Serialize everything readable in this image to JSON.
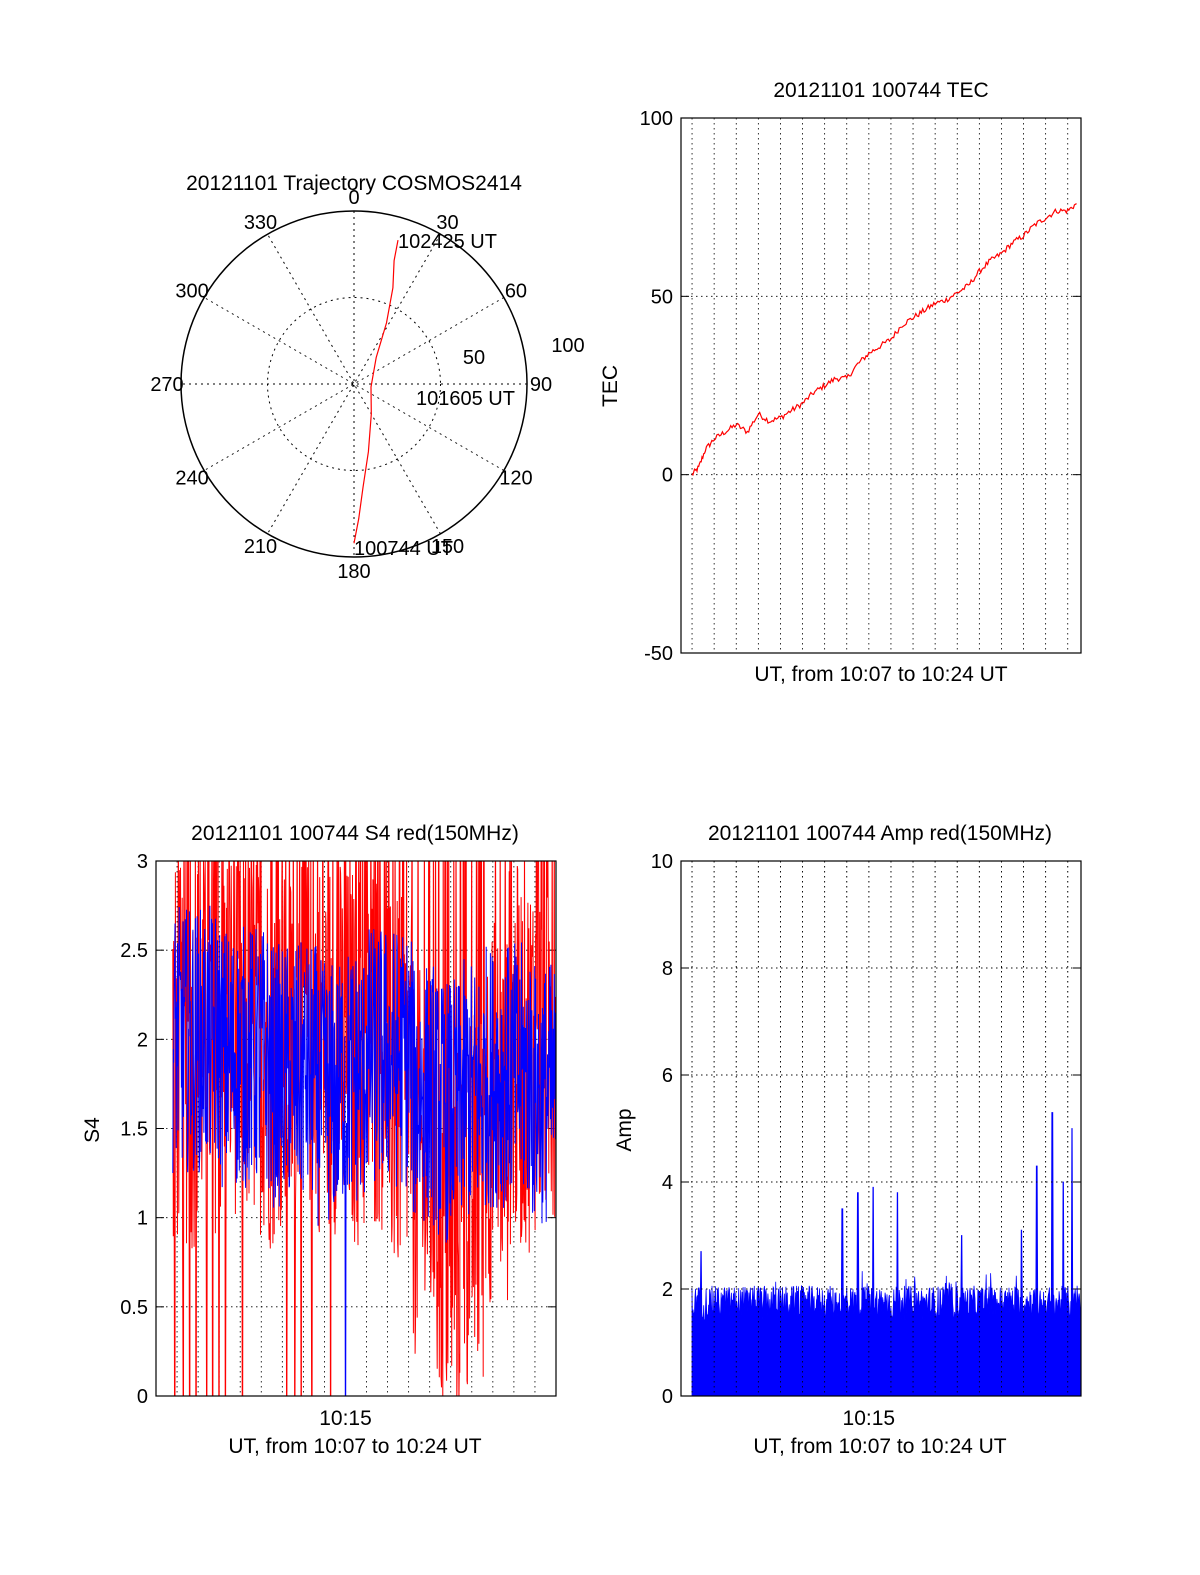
{
  "chart_data": [
    {
      "id": "polar",
      "type": "polar",
      "title": "20121101 Trajectory COSMOS2414",
      "azimuth_labels": [
        "0",
        "30",
        "60",
        "90",
        "120",
        "150",
        "180",
        "210",
        "240",
        "270",
        "300",
        "330"
      ],
      "radial_labels": [
        "50",
        "100"
      ],
      "radial_max": 100,
      "trajectory": {
        "color": "#ff0000",
        "points": [
          {
            "az": 180,
            "r": 92
          },
          {
            "az": 178,
            "r": 78
          },
          {
            "az": 175,
            "r": 60
          },
          {
            "az": 168,
            "r": 40
          },
          {
            "az": 150,
            "r": 20
          },
          {
            "az": 100,
            "r": 10
          },
          {
            "az": 40,
            "r": 20
          },
          {
            "az": 28,
            "r": 40
          },
          {
            "az": 22,
            "r": 60
          },
          {
            "az": 18,
            "r": 75
          },
          {
            "az": 17,
            "r": 87
          }
        ],
        "labels": [
          {
            "text": "102425 UT",
            "az": 17,
            "r": 87
          },
          {
            "text": "101605 UT",
            "az": 100,
            "r": 10
          },
          {
            "text": "100744 UT",
            "az": 180,
            "r": 92
          }
        ]
      },
      "grid": "dotted"
    },
    {
      "id": "tec",
      "type": "line",
      "title": "20121101 100744 TEC",
      "xlabel": "UT, from 10:07 to 10:24 UT",
      "ylabel": "TEC",
      "ylim": [
        -50,
        100
      ],
      "yticks": [
        "-50",
        "0",
        "50",
        "100"
      ],
      "xlim_minutes": [
        6.5,
        24.6
      ],
      "grid": true,
      "series": [
        {
          "color": "#ff0000",
          "x_minutes": [
            7.0,
            7.3,
            7.6,
            8.0,
            8.5,
            9.0,
            9.5,
            10.0,
            10.5,
            11.0,
            11.5,
            12.0,
            12.5,
            13.0,
            13.5,
            14.0,
            14.5,
            15.0,
            15.5,
            16.0,
            16.5,
            17.0,
            17.5,
            18.0,
            18.5,
            19.0,
            19.5,
            20.0,
            20.5,
            21.0,
            21.5,
            22.0,
            22.5,
            23.0,
            23.5,
            24.0,
            24.4
          ],
          "values": [
            0,
            2,
            7,
            10,
            12,
            14,
            12,
            17,
            15,
            16,
            18,
            20,
            23,
            25,
            27,
            27,
            31,
            34,
            36,
            38,
            42,
            44,
            46,
            48,
            49,
            51,
            53,
            57,
            60,
            62,
            65,
            67,
            70,
            72,
            74,
            74,
            76
          ]
        }
      ]
    },
    {
      "id": "s4",
      "type": "line",
      "title": "20121101 100744 S4 red(150MHz)",
      "xlabel": "UT, from 10:07 to 10:24 UT",
      "ylabel": "S4",
      "ylim": [
        0,
        3
      ],
      "yticks": [
        "0",
        "0.5",
        "1",
        "1.5",
        "2",
        "2.5",
        "3"
      ],
      "xtick_label": "10:15",
      "xtick_minute": 15,
      "xlim_minutes": [
        6.0,
        25.0
      ],
      "grid": true,
      "series": [
        {
          "color": "#ff0000",
          "noise": {
            "base": [
              1.9,
              2.0,
              2.1,
              2.0,
              1.9,
              2.1,
              2.0,
              1.9,
              2.0,
              1.7,
              1.3,
              0.9,
              1.1,
              1.6,
              1.9,
              2.0
            ],
            "amplitude": 1.1,
            "drops": [
              6.9,
              7.3,
              7.6,
              7.9,
              8.4,
              8.7,
              9.0,
              9.3,
              10.1,
              12.2,
              12.6,
              12.9,
              13.4,
              14.3
            ]
          }
        },
        {
          "color": "#0000ff",
          "noise": {
            "base": [
              2.0,
              2.0,
              1.9,
              1.9,
              1.8,
              1.8,
              1.7,
              1.8,
              1.9,
              1.9,
              1.7,
              1.6,
              1.7,
              1.8,
              1.8,
              1.7
            ],
            "amplitude": 0.75,
            "drops": [
              15.0
            ]
          }
        }
      ]
    },
    {
      "id": "amp",
      "type": "area",
      "title": "20121101 100744 Amp red(150MHz)",
      "xlabel": "UT, from 10:07 to 10:24 UT",
      "ylabel": "Amp",
      "ylim": [
        0,
        10
      ],
      "yticks": [
        "0",
        "2",
        "4",
        "6",
        "8",
        "10"
      ],
      "xtick_label": "10:15",
      "xtick_minute": 15,
      "xlim_minutes": [
        6.5,
        24.6
      ],
      "grid": true,
      "series": [
        {
          "color": "#0000ff",
          "x_start_minute": 7.0,
          "x_end_minute": 24.6,
          "floor": 1.4,
          "typical_peak": 2.0,
          "spikes": [
            {
              "x": 7.4,
              "v": 2.7
            },
            {
              "x": 13.8,
              "v": 3.5
            },
            {
              "x": 14.5,
              "v": 3.8
            },
            {
              "x": 15.2,
              "v": 3.9
            },
            {
              "x": 16.3,
              "v": 3.8
            },
            {
              "x": 19.2,
              "v": 3.0
            },
            {
              "x": 21.9,
              "v": 3.1
            },
            {
              "x": 22.6,
              "v": 4.3
            },
            {
              "x": 23.3,
              "v": 5.3
            },
            {
              "x": 23.8,
              "v": 4.0
            },
            {
              "x": 24.2,
              "v": 5.0
            }
          ]
        }
      ]
    }
  ]
}
